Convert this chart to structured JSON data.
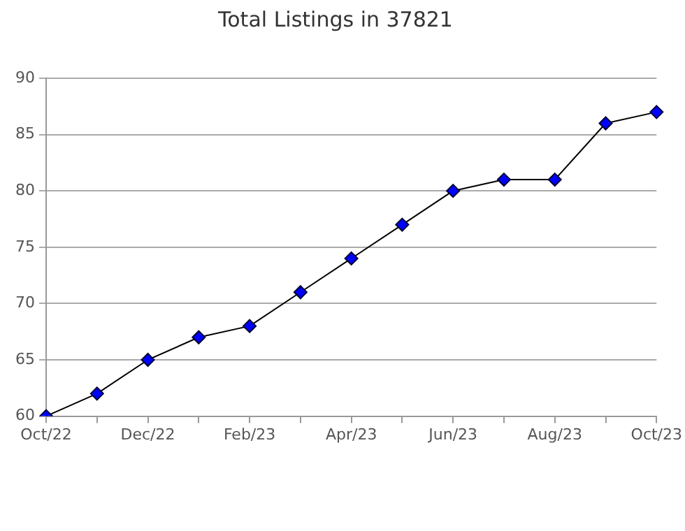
{
  "chart_data": {
    "type": "line",
    "title": "Total Listings in 37821",
    "categories": [
      "Oct/22",
      null,
      "Dec/22",
      null,
      "Feb/23",
      null,
      "Apr/23",
      null,
      "Jun/23",
      null,
      "Aug/23",
      null,
      "Oct/23"
    ],
    "series": [
      {
        "color": "#0000ff",
        "values": [
          60,
          62,
          65,
          67,
          68,
          71,
          74,
          77,
          80,
          81,
          81,
          86,
          87
        ]
      }
    ],
    "ylim": [
      60,
      90
    ],
    "yticks": [
      60,
      65,
      70,
      75,
      80,
      85,
      90
    ],
    "grid": "y",
    "legend": false,
    "marker": "diamond",
    "line_style": "solid"
  }
}
